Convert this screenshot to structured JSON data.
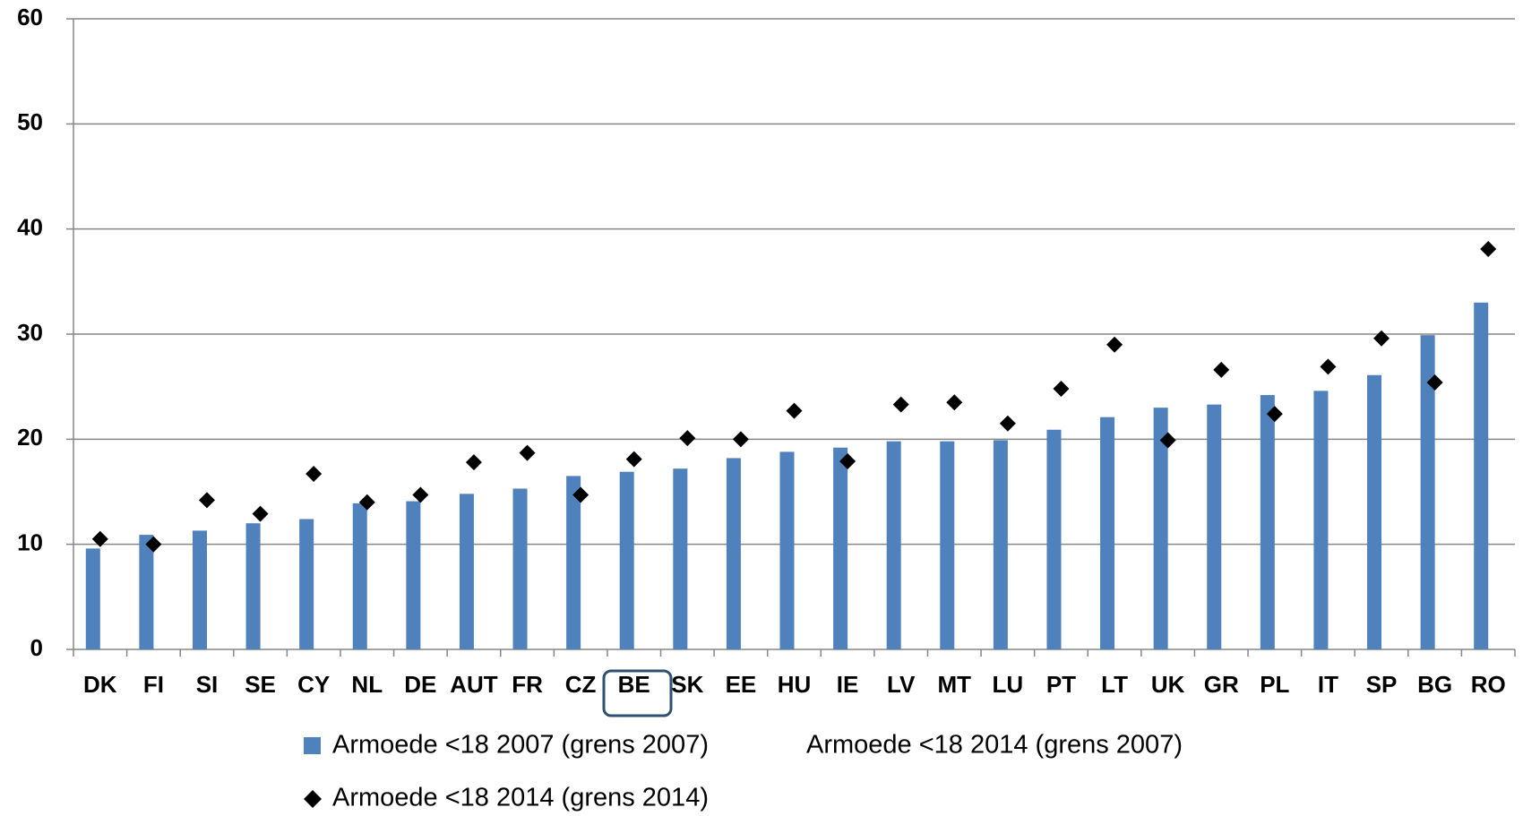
{
  "chart_data": {
    "type": "bar",
    "categories": [
      "DK",
      "FI",
      "SI",
      "SE",
      "CY",
      "NL",
      "DE",
      "AUT",
      "FR",
      "CZ",
      "BE",
      "SK",
      "EE",
      "HU",
      "IE",
      "LV",
      "MT",
      "LU",
      "PT",
      "LT",
      "UK",
      "GR",
      "PL",
      "IT",
      "SP",
      "BG",
      "RO"
    ],
    "series": [
      {
        "name": "Armoede <18 2007 (grens 2007)",
        "type": "bar",
        "color": "#4f81bd",
        "values": [
          9.6,
          10.9,
          11.3,
          12.0,
          12.4,
          13.9,
          14.1,
          14.8,
          15.3,
          16.5,
          16.9,
          17.2,
          18.2,
          18.8,
          19.2,
          19.8,
          19.8,
          19.9,
          20.9,
          22.1,
          23.0,
          23.3,
          24.2,
          24.6,
          26.1,
          29.9,
          33.0
        ]
      },
      {
        "name": "Armoede <18 2014 (grens 2007)",
        "type": "line",
        "values": [
          null,
          null,
          null,
          null,
          null,
          null,
          null,
          null,
          null,
          null,
          null,
          null,
          null,
          null,
          null,
          null,
          null,
          null,
          null,
          null,
          null,
          null,
          null,
          null,
          null,
          null,
          null
        ]
      },
      {
        "name": "Armoede <18 2014 (grens 2014)",
        "type": "scatter",
        "color": "#000000",
        "values": [
          10.5,
          10.0,
          14.2,
          12.9,
          16.7,
          14.0,
          14.7,
          17.8,
          18.7,
          14.7,
          18.1,
          20.1,
          20.0,
          22.7,
          17.9,
          23.3,
          23.5,
          21.5,
          24.8,
          29.0,
          19.9,
          26.6,
          22.4,
          26.9,
          29.6,
          25.4,
          38.1
        ]
      }
    ],
    "ylim": [
      0,
      60
    ],
    "yticks": [
      0,
      10,
      20,
      30,
      40,
      50,
      60
    ],
    "grid": true
  }
}
